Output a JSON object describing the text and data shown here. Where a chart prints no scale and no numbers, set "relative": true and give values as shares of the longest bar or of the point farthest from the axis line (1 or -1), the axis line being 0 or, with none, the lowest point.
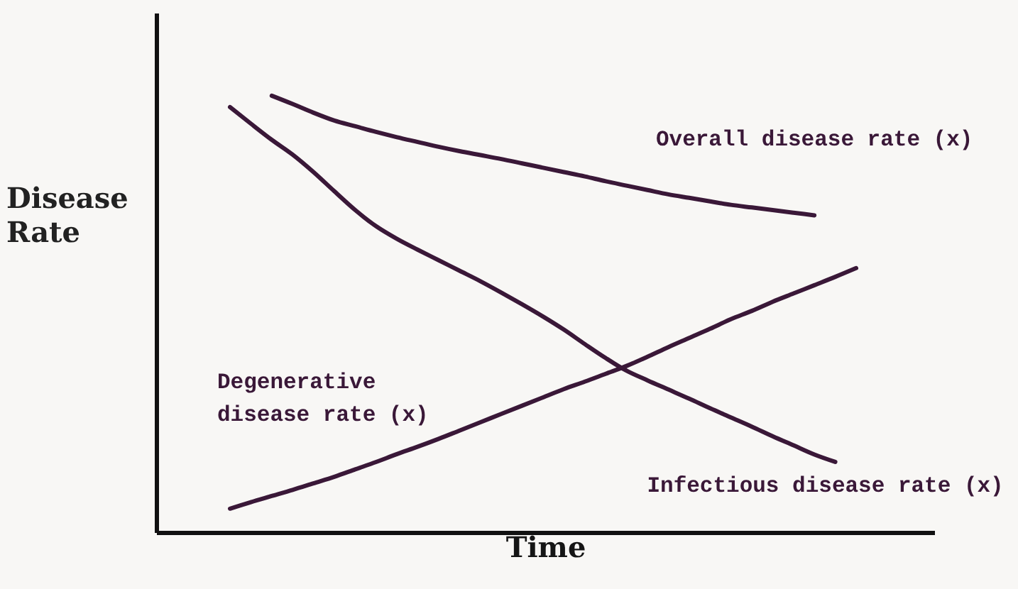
{
  "chart_data": {
    "type": "line",
    "xlabel": "Time",
    "ylabel": "Disease Rate",
    "relative": true,
    "categories": [
      null,
      null,
      null,
      null,
      null,
      null,
      null,
      null,
      null,
      null,
      null,
      null,
      null,
      null,
      null,
      null,
      null,
      null,
      null,
      null,
      null,
      null,
      null,
      null,
      null,
      null,
      null,
      null,
      null,
      null,
      null
    ],
    "series": [
      {
        "name": "Overall disease rate (x)",
        "color": "#3a1838",
        "values": [
          null,
          null,
          1.0,
          0.981,
          0.961,
          0.943,
          0.93,
          0.917,
          0.905,
          0.894,
          0.883,
          0.873,
          0.864,
          0.855,
          0.845,
          0.835,
          0.825,
          0.815,
          0.804,
          0.794,
          0.784,
          0.774,
          0.766,
          0.758,
          0.75,
          0.744,
          0.738,
          0.732,
          0.726,
          null,
          null
        ]
      },
      {
        "name": "Infectious disease rate (x)",
        "color": "#3a1838",
        "values": [
          0.974,
          0.936,
          0.899,
          0.865,
          0.825,
          0.781,
          0.738,
          0.701,
          0.672,
          0.647,
          0.623,
          0.599,
          0.575,
          0.549,
          0.522,
          0.494,
          0.464,
          0.431,
          0.399,
          0.37,
          0.348,
          0.327,
          0.306,
          0.284,
          0.263,
          0.242,
          0.22,
          0.199,
          0.178,
          0.161,
          null
        ]
      },
      {
        "name": "Degenerative disease rate (x)",
        "color": "#3a1838",
        "values": [
          0.054,
          0.069,
          0.083,
          0.097,
          0.112,
          0.127,
          0.144,
          0.161,
          0.179,
          0.196,
          0.214,
          0.233,
          0.252,
          0.271,
          0.29,
          0.309,
          0.328,
          0.345,
          0.363,
          0.381,
          0.402,
          0.424,
          0.445,
          0.466,
          0.488,
          0.507,
          0.528,
          0.547,
          0.566,
          0.585,
          0.605
        ]
      }
    ]
  }
}
